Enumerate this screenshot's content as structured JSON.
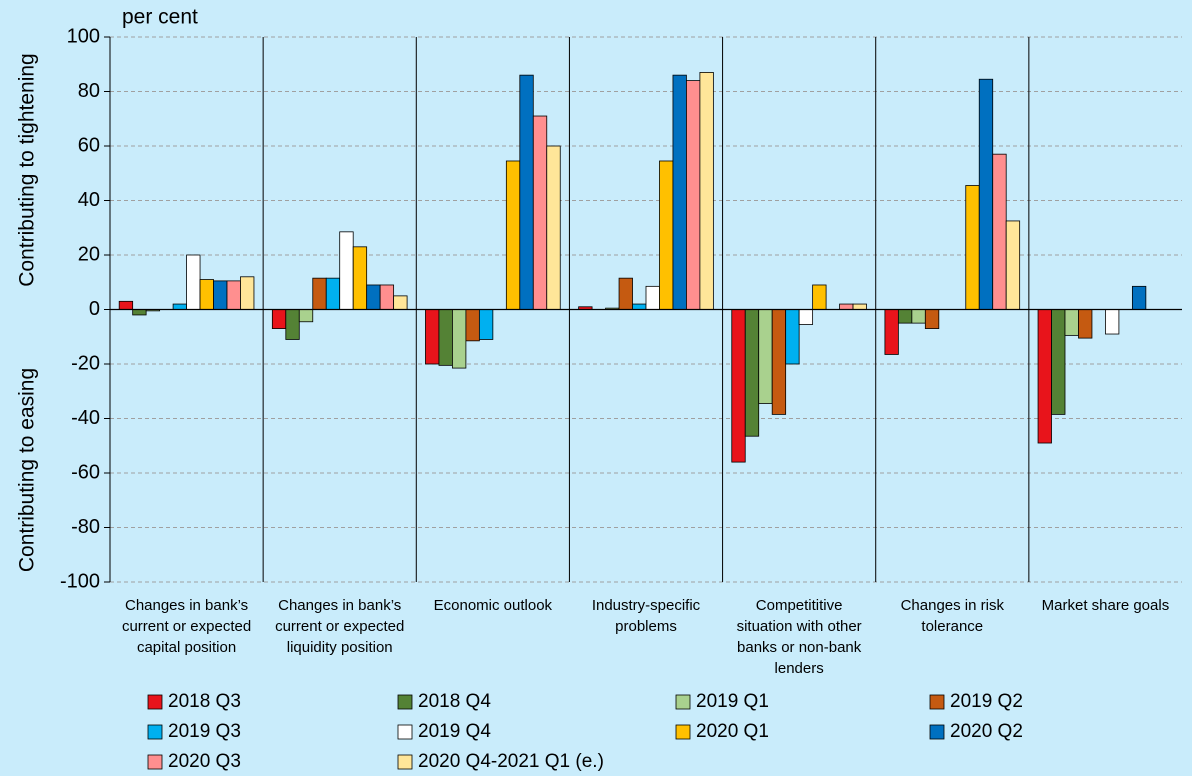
{
  "chart_data": {
    "type": "bar",
    "unit_label": "per cent",
    "y_label_top": "Contributing to tightening",
    "y_label_bottom": "Contributing to easing",
    "categories": [
      "Changes in bank’s\ncurrent or expected\ncapital position",
      "Changes in bank’s\ncurrent or expected\nliquidity position",
      "Economic outlook",
      "Industry-specific\nproblems",
      "Competititive\nsituation with other\nbanks or non-bank\nlenders",
      "Changes in risk\ntolerance",
      "Market share goals"
    ],
    "series": [
      {
        "name": "2018 Q3",
        "color": "#e8141b",
        "values": [
          3,
          -7,
          -20,
          1,
          -56,
          -16.5,
          -49
        ]
      },
      {
        "name": "2018 Q4",
        "color": "#548235",
        "values": [
          -2,
          -11,
          -20.5,
          0,
          -46.5,
          -5,
          -38.5
        ]
      },
      {
        "name": "2019 Q1",
        "color": "#a9d18e",
        "values": [
          -0.5,
          -4.5,
          -21.5,
          0.5,
          -34.5,
          -5,
          -9.5
        ]
      },
      {
        "name": "2019 Q2",
        "color": "#c55a11",
        "values": [
          0,
          11.5,
          -11.5,
          11.5,
          -38.5,
          -7,
          -10.5
        ]
      },
      {
        "name": "2019 Q3",
        "color": "#00b0f0",
        "values": [
          2,
          11.5,
          -11,
          2,
          -20,
          0,
          0
        ]
      },
      {
        "name": "2019 Q4",
        "color": "#ffffff",
        "values": [
          20,
          28.5,
          0,
          8.5,
          -5.5,
          0,
          -9
        ]
      },
      {
        "name": "2020 Q1",
        "color": "#ffc000",
        "values": [
          11,
          23,
          54.5,
          54.5,
          9,
          45.5,
          0
        ]
      },
      {
        "name": "2020 Q2",
        "color": "#0070c0",
        "values": [
          10.5,
          9,
          86,
          86,
          0,
          84.5,
          8.5
        ]
      },
      {
        "name": "2020 Q3",
        "color": "#ff8f8f",
        "values": [
          10.5,
          9,
          71,
          84,
          2,
          57,
          0
        ]
      },
      {
        "name": "2020 Q4-2021 Q1 (e.)",
        "color": "#ffe699",
        "values": [
          12,
          5,
          60,
          87,
          2,
          32.5,
          0
        ]
      }
    ],
    "ylim": [
      -100,
      100
    ],
    "yticks": [
      -100,
      -80,
      -60,
      -40,
      -20,
      0,
      20,
      40,
      60,
      80,
      100
    ],
    "grid": true
  }
}
